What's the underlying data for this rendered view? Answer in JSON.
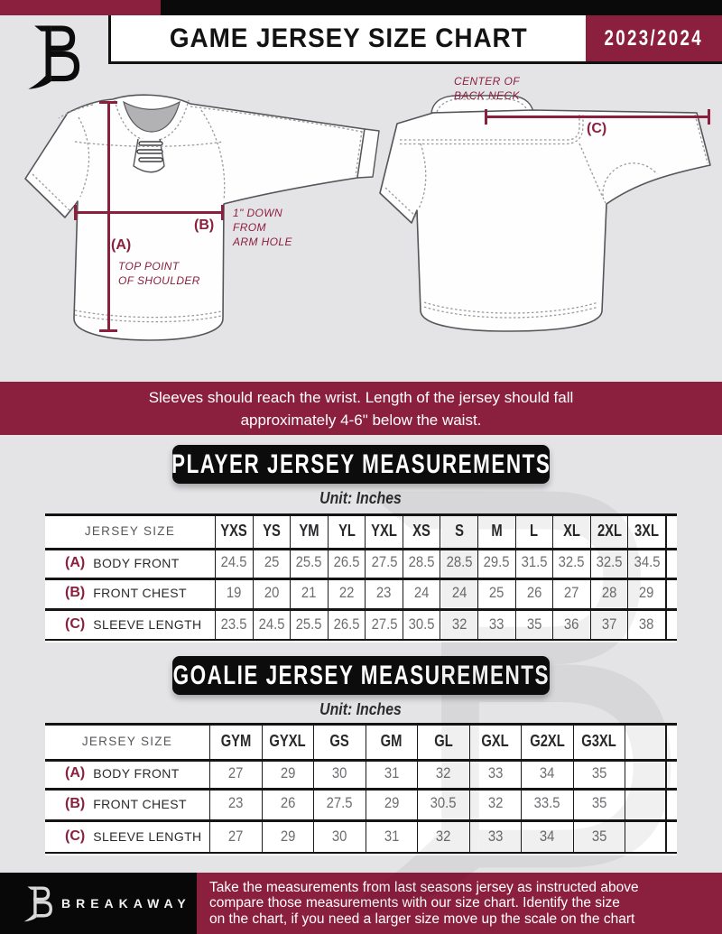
{
  "colors": {
    "maroon": "#8B1F3E",
    "black": "#0a0a0a",
    "background": "#e4e4e6",
    "value_gray": "#6d6e71"
  },
  "header": {
    "title": "GAME JERSEY SIZE CHART",
    "season": "2023/2024",
    "logo": "breakaway-b-logo"
  },
  "diagram": {
    "front": {
      "label_a": "(A)",
      "label_b": "(B)",
      "note_top_point": [
        "TOP POINT",
        "OF SHOULDER"
      ],
      "note_armhole": [
        "1\" DOWN",
        "FROM",
        "ARM HOLE"
      ]
    },
    "back": {
      "label_c": "(C)",
      "note_back_neck": [
        "CENTER OF",
        "BACK NECK"
      ]
    }
  },
  "wrist_banner": {
    "lines": [
      "Sleeves should reach the wrist. Length of the jersey should fall",
      "approximately 4-6\" below the waist."
    ]
  },
  "player_table": {
    "title": "PLAYER JERSEY MEASUREMENTS",
    "unit": "Unit: Inches",
    "size_header": "JERSEY SIZE",
    "sizes": [
      "YXS",
      "YS",
      "YM",
      "YL",
      "YXL",
      "XS",
      "S",
      "M",
      "L",
      "XL",
      "2XL",
      "3XL"
    ],
    "rows": [
      {
        "key": "(A)",
        "label": "BODY FRONT",
        "values": [
          "24.5",
          "25",
          "25.5",
          "26.5",
          "27.5",
          "28.5",
          "28.5",
          "29.5",
          "31.5",
          "32.5",
          "32.5",
          "34.5"
        ]
      },
      {
        "key": "(B)",
        "label": "FRONT CHEST",
        "values": [
          "19",
          "20",
          "21",
          "22",
          "23",
          "24",
          "24",
          "25",
          "26",
          "27",
          "28",
          "29"
        ]
      },
      {
        "key": "(C)",
        "label": "SLEEVE LENGTH",
        "values": [
          "23.5",
          "24.5",
          "25.5",
          "26.5",
          "27.5",
          "30.5",
          "32",
          "33",
          "35",
          "36",
          "37",
          "38"
        ]
      }
    ]
  },
  "goalie_table": {
    "title": "GOALIE JERSEY MEASUREMENTS",
    "unit": "Unit: Inches",
    "size_header": "JERSEY SIZE",
    "sizes": [
      "GYM",
      "GYXL",
      "GS",
      "GM",
      "GL",
      "GXL",
      "G2XL",
      "G3XL"
    ],
    "empty_trailing_column": true,
    "rows": [
      {
        "key": "(A)",
        "label": "BODY FRONT",
        "values": [
          "27",
          "29",
          "30",
          "31",
          "32",
          "33",
          "34",
          "35"
        ]
      },
      {
        "key": "(B)",
        "label": "FRONT CHEST",
        "values": [
          "23",
          "26",
          "27.5",
          "29",
          "30.5",
          "32",
          "33.5",
          "35"
        ]
      },
      {
        "key": "(C)",
        "label": "SLEEVE LENGTH",
        "values": [
          "27",
          "29",
          "30",
          "31",
          "32",
          "33",
          "34",
          "35"
        ]
      }
    ]
  },
  "footer": {
    "brand": "BREAKAWAY",
    "lines": [
      "Take the measurements from last seasons jersey as instructed above",
      "compare those measurements  with our size chart. Identify the size",
      "on the chart, if you need a larger size move up the scale on the chart"
    ]
  }
}
